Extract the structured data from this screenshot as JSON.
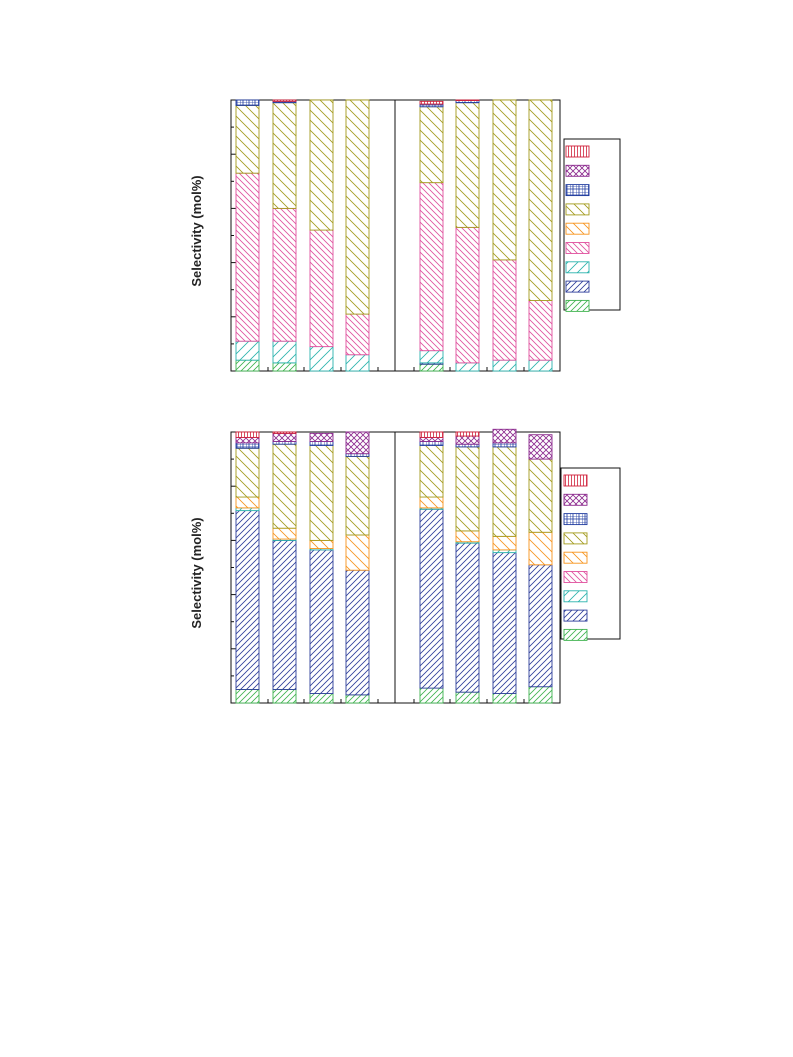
{
  "colors": {
    "green": "#3fb34f",
    "blue": "#2e3e9a",
    "cyan": "#2bb3ad",
    "magenta": "#e0509e",
    "orange": "#f7941d",
    "olive": "#a39a1c",
    "navy": "#1f3b9f",
    "purple": "#8c2a8e",
    "red": "#d0213a"
  },
  "chart_data": [
    {
      "type": "bar",
      "stacked": true,
      "ylabel": "Selectivity (mol%)",
      "ylim": [
        0,
        100
      ],
      "grid": false,
      "legend_position": "right",
      "categories": [
        "",
        "",
        "",
        "",
        "",
        "",
        "",
        ""
      ],
      "series": [
        {
          "color": "green",
          "pattern": "hatch-right",
          "values": [
            4,
            3,
            0,
            0,
            2.5,
            0,
            0,
            0
          ]
        },
        {
          "color": "blue",
          "pattern": "hatch-right",
          "values": [
            0,
            0,
            0,
            0,
            0.5,
            0,
            0,
            0
          ]
        },
        {
          "color": "cyan",
          "pattern": "hatch-right-wide",
          "values": [
            7,
            8,
            9,
            6,
            4.5,
            3,
            4,
            4
          ]
        },
        {
          "color": "magenta",
          "pattern": "hatch-left",
          "values": [
            62,
            49,
            43,
            15,
            62,
            50,
            37,
            22
          ]
        },
        {
          "color": "orange",
          "pattern": "hatch-left-wide",
          "values": [
            0,
            0,
            0,
            0,
            0,
            0,
            0,
            0
          ]
        },
        {
          "color": "olive",
          "pattern": "hatch-left-wide",
          "values": [
            25,
            39,
            48,
            79,
            28,
            46,
            59,
            74
          ]
        },
        {
          "color": "navy",
          "pattern": "grid",
          "values": [
            2,
            0.5,
            0,
            0,
            1,
            0.8,
            0,
            0
          ]
        },
        {
          "color": "purple",
          "pattern": "cross",
          "values": [
            0,
            0,
            0,
            0,
            0,
            0,
            0,
            0
          ]
        },
        {
          "color": "red",
          "pattern": "vertical",
          "values": [
            0,
            0.5,
            0,
            0,
            1,
            0.2,
            0,
            0
          ]
        }
      ]
    },
    {
      "type": "bar",
      "stacked": true,
      "ylabel": "Selectivity (mol%)",
      "ylim": [
        0,
        100
      ],
      "grid": false,
      "legend_position": "right",
      "categories": [
        "",
        "",
        "",
        "",
        "",
        "",
        "",
        ""
      ],
      "series": [
        {
          "color": "green",
          "pattern": "hatch-right",
          "values": [
            5,
            5,
            3.5,
            3,
            5.5,
            4,
            3.5,
            6
          ]
        },
        {
          "color": "blue",
          "pattern": "hatch-right",
          "values": [
            66,
            55,
            53,
            46,
            66,
            55,
            52,
            45
          ]
        },
        {
          "color": "cyan",
          "pattern": "hatch-right-wide",
          "values": [
            1,
            0.5,
            0.5,
            0,
            0.5,
            0.5,
            1,
            0
          ]
        },
        {
          "color": "magenta",
          "pattern": "hatch-left",
          "values": [
            0,
            0,
            0,
            0,
            0,
            0,
            0,
            0
          ]
        },
        {
          "color": "orange",
          "pattern": "hatch-left-wide",
          "values": [
            4,
            4,
            3,
            13,
            4,
            4,
            5,
            12
          ]
        },
        {
          "color": "olive",
          "pattern": "hatch-left-wide",
          "values": [
            18,
            31,
            35,
            29,
            19,
            31,
            33,
            27
          ]
        },
        {
          "color": "navy",
          "pattern": "grid",
          "values": [
            2,
            1,
            1.5,
            1,
            1.5,
            1,
            1.5,
            0
          ]
        },
        {
          "color": "purple",
          "pattern": "cross",
          "values": [
            2,
            3,
            3,
            8,
            1.5,
            3,
            5,
            9
          ]
        },
        {
          "color": "red",
          "pattern": "vertical",
          "values": [
            2,
            0.5,
            0,
            0,
            2,
            1.5,
            0,
            0
          ]
        }
      ]
    }
  ]
}
